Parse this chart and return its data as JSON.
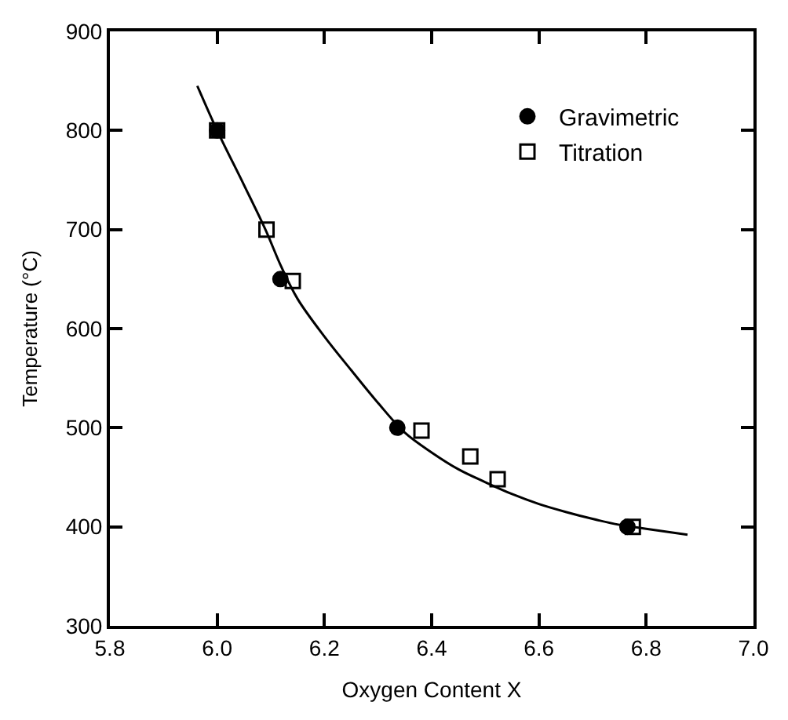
{
  "chart_data": {
    "type": "scatter",
    "xlabel": "Oxygen Content X",
    "ylabel": "Temperature (°C)",
    "xlim": [
      5.8,
      7.0
    ],
    "xticks": [
      {
        "value": 5.8,
        "label": "5.8"
      },
      {
        "value": 6.0,
        "label": "6.0"
      },
      {
        "value": 6.2,
        "label": "6.2"
      },
      {
        "value": 6.4,
        "label": "6.4"
      },
      {
        "value": 6.6,
        "label": "6.6"
      },
      {
        "value": 6.8,
        "label": "6.8"
      },
      {
        "value": 7.0,
        "label": "7.0"
      }
    ],
    "ylim": [
      300,
      900
    ],
    "yticks": [
      300,
      400,
      500,
      600,
      700,
      800,
      900
    ],
    "legend": "top right",
    "series": [
      {
        "type": "line",
        "color": "#000000",
        "marker": "none",
        "line_style": "solid",
        "x": [
          5.963,
          6.0,
          6.05,
          6.09,
          6.12,
          6.15,
          6.2,
          6.25,
          6.3,
          6.35,
          6.4,
          6.45,
          6.5,
          6.55,
          6.6,
          6.65,
          6.7,
          6.75,
          6.8,
          6.877
        ],
        "values": [
          845,
          800,
          745,
          700,
          662,
          630,
          592,
          558,
          525,
          495,
          475,
          458,
          445,
          433,
          423,
          415,
          408,
          402,
          398,
          392
        ]
      },
      {
        "name": "Gravimetric",
        "color": "#000000",
        "marker": "circle",
        "x": [
          6.0,
          6.118,
          6.336,
          6.765
        ],
        "values": [
          800,
          650,
          500,
          400
        ]
      },
      {
        "name": "Titration",
        "color": "#000000",
        "marker": "square-open",
        "x": [
          6.0,
          6.092,
          6.141,
          6.381,
          6.472,
          6.523,
          6.775
        ],
        "values": [
          800,
          700,
          648,
          497,
          471,
          448,
          400
        ]
      }
    ]
  }
}
